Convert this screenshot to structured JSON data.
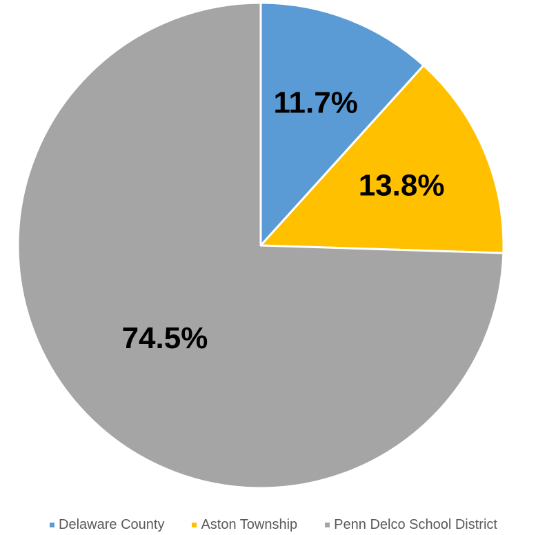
{
  "chart_data": {
    "type": "pie",
    "categories": [
      "Delaware County",
      "Aston Township",
      "Penn Delco School District"
    ],
    "values": [
      11.7,
      13.8,
      74.5
    ],
    "data_labels": [
      "11.7%",
      "13.8%",
      "74.5%"
    ],
    "colors": [
      "#5B9BD5",
      "#FFC000",
      "#A5A5A5"
    ],
    "start_angle": "12 o'clock",
    "direction": "clockwise",
    "legend_position": "bottom"
  }
}
